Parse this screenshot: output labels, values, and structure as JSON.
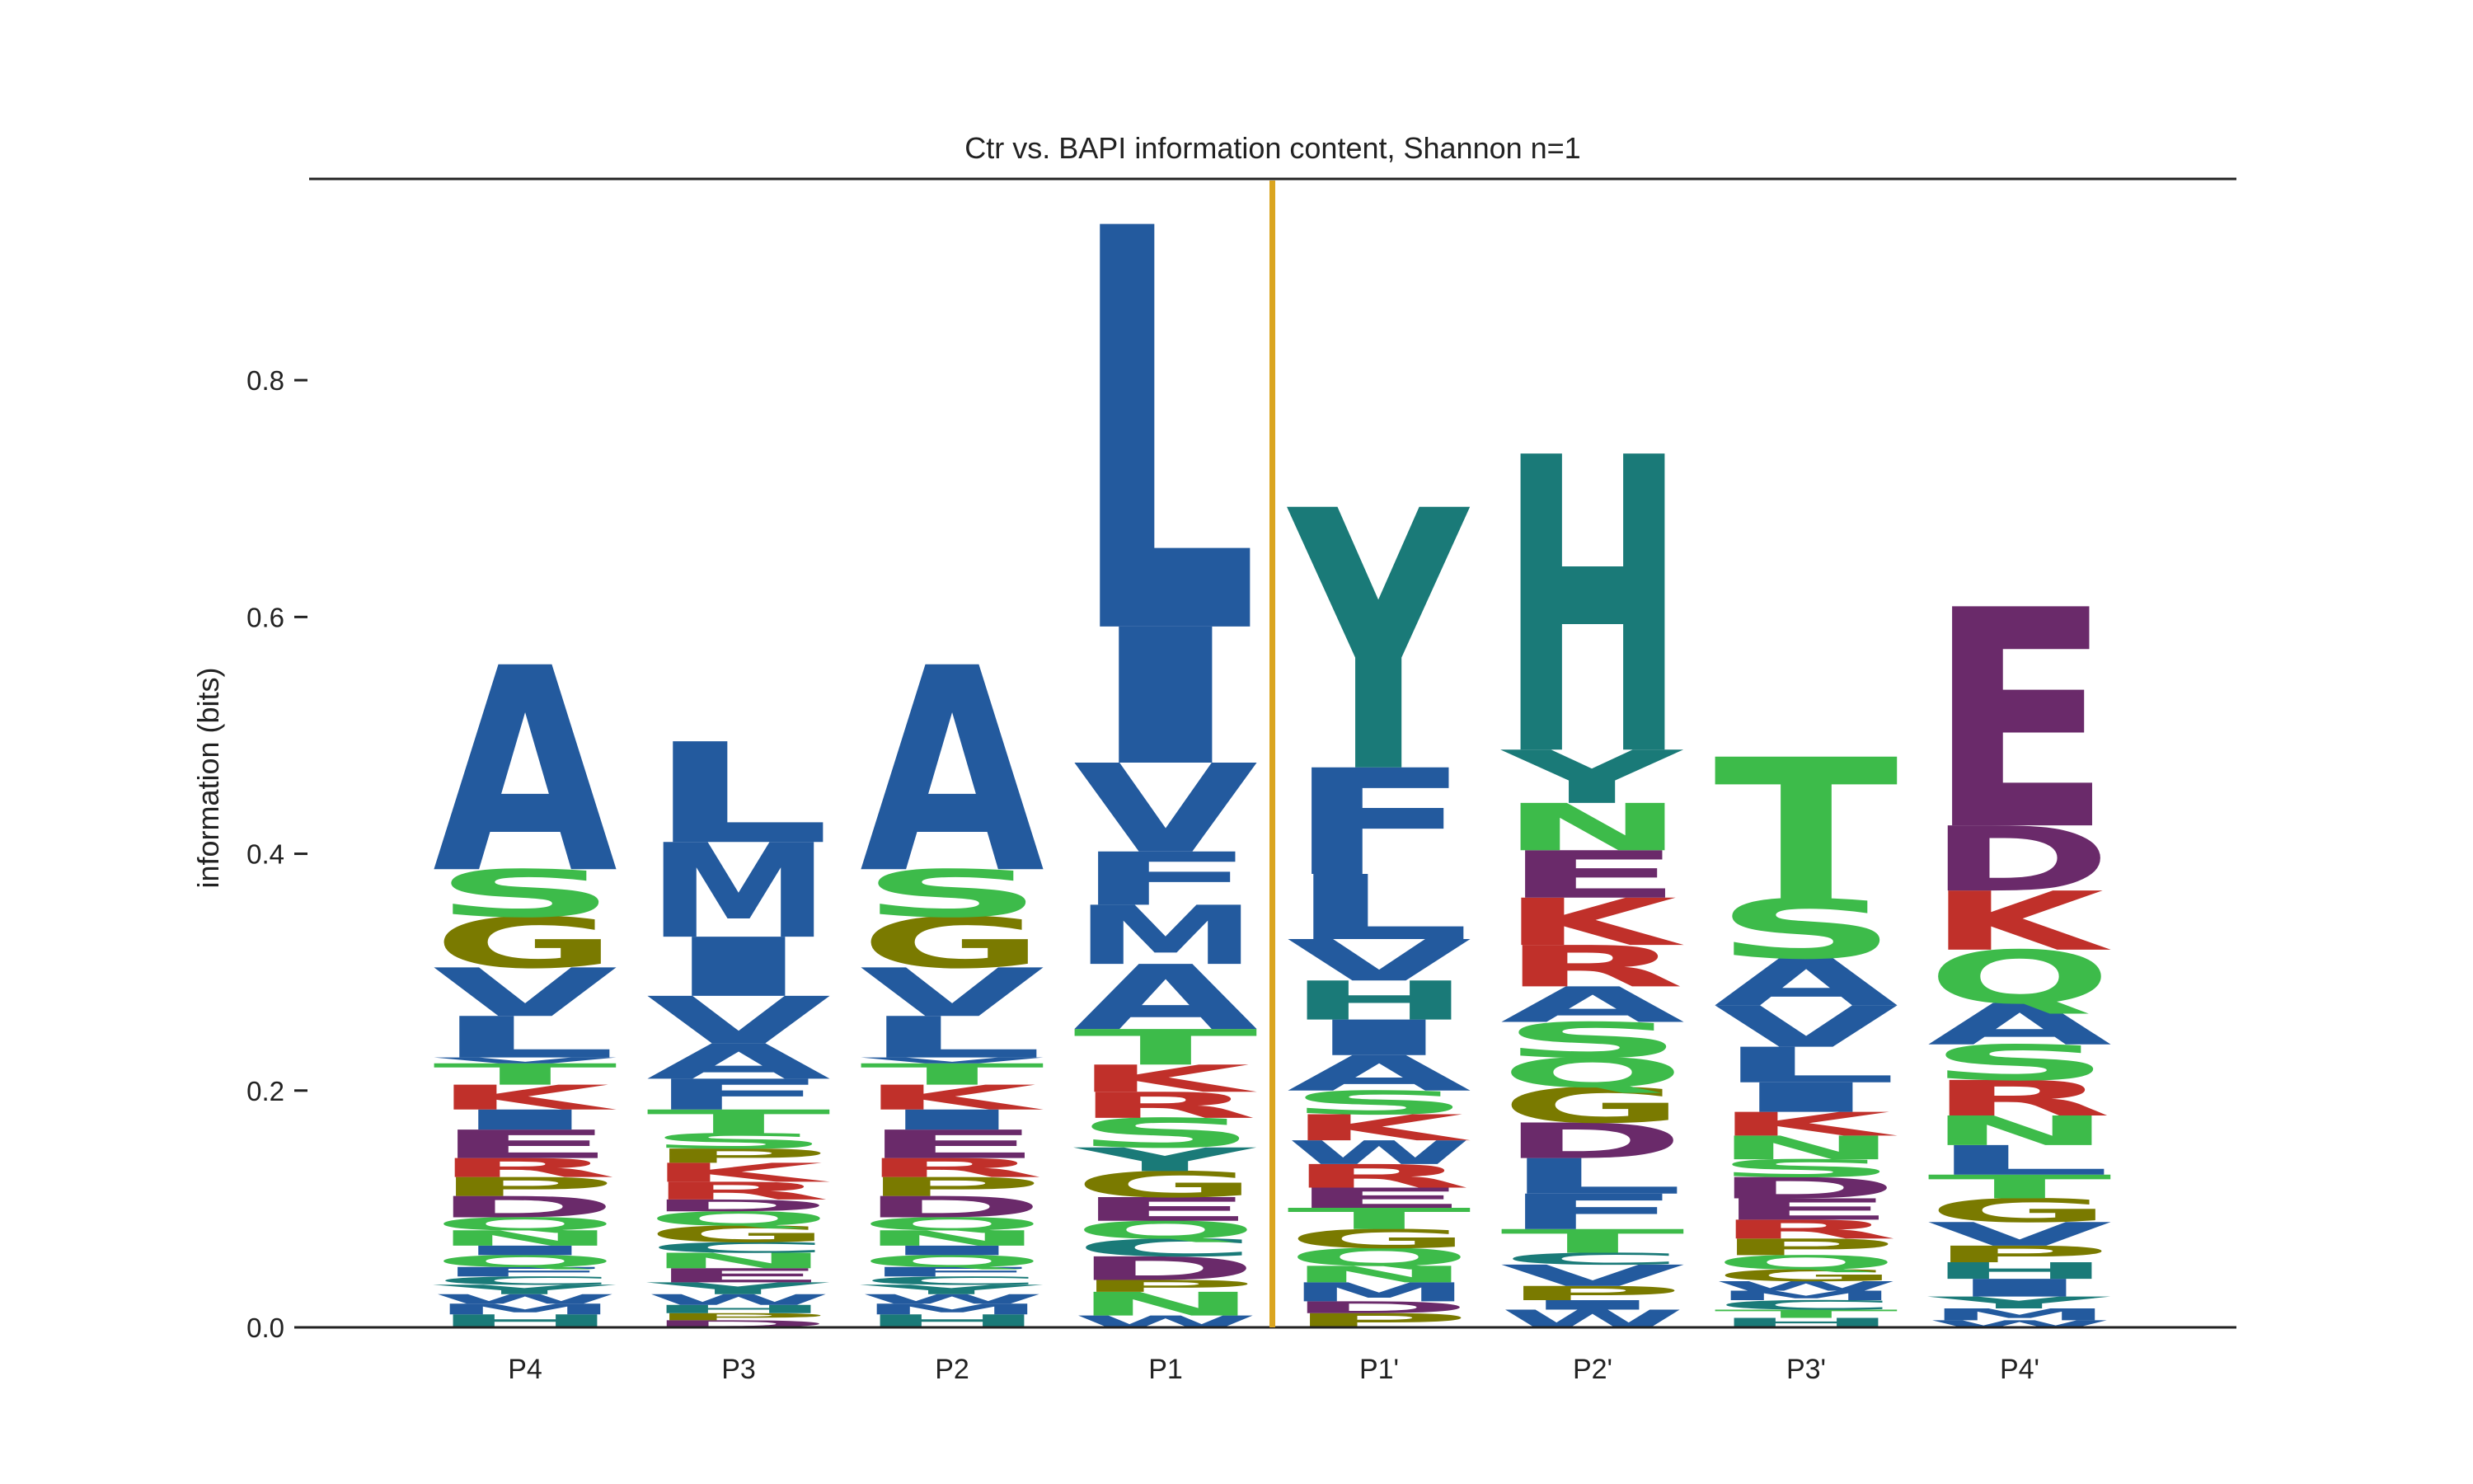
{
  "chart_data": {
    "type": "sequence-logo",
    "title": "Ctr vs. BAPI information content, Shannon n=1",
    "ylabel": "information (bits)",
    "xlabel": "",
    "ylim": [
      0,
      0.97
    ],
    "yticks": [
      {
        "value": 0.0,
        "label": "0.0"
      },
      {
        "value": 0.2,
        "label": "0.2"
      },
      {
        "value": 0.4,
        "label": "0.4"
      },
      {
        "value": 0.6,
        "label": "0.6"
      },
      {
        "value": 0.8,
        "label": "0.8"
      }
    ],
    "cleavage_site_between": [
      "P1",
      "P1'"
    ],
    "colors": {
      "A": "#235a9e",
      "V": "#235a9e",
      "L": "#235a9e",
      "I": "#235a9e",
      "M": "#235a9e",
      "F": "#235a9e",
      "W": "#235a9e",
      "S": "#3dbb4a",
      "T": "#3dbb4a",
      "N": "#3dbb4a",
      "Q": "#3dbb4a",
      "G": "#7a7a00",
      "P": "#7a7a00",
      "K": "#c0302a",
      "R": "#c0302a",
      "D": "#6a2a6a",
      "E": "#6a2a6a",
      "H": "#1a7a78",
      "Y": "#1a7a78",
      "C": "#1a7a78",
      "cleavage_line": "#daa520"
    },
    "positions": [
      {
        "label": "P4",
        "letters": [
          [
            "H",
            0.011
          ],
          [
            "M",
            0.009
          ],
          [
            "W",
            0.008
          ],
          [
            "Y",
            0.008
          ],
          [
            "C",
            0.007
          ],
          [
            "F",
            0.008
          ],
          [
            "Q",
            0.01
          ],
          [
            "I",
            0.008
          ],
          [
            "N",
            0.013
          ],
          [
            "Q",
            0.011
          ],
          [
            "D",
            0.018
          ],
          [
            "P",
            0.016
          ],
          [
            "R",
            0.016
          ],
          [
            "E",
            0.024
          ],
          [
            "I",
            0.017
          ],
          [
            "K",
            0.021
          ],
          [
            "T",
            0.018
          ],
          [
            "V",
            0.005
          ],
          [
            "L",
            0.035
          ],
          [
            "V",
            0.041
          ],
          [
            "G",
            0.043
          ],
          [
            "S",
            0.04
          ],
          [
            "A",
            0.173
          ]
        ]
      },
      {
        "label": "P3",
        "letters": [
          [
            "D",
            0.006
          ],
          [
            "P",
            0.006
          ],
          [
            "H",
            0.007
          ],
          [
            "W",
            0.009
          ],
          [
            "Y",
            0.01
          ],
          [
            "E",
            0.012
          ],
          [
            "N",
            0.013
          ],
          [
            "C",
            0.009
          ],
          [
            "G",
            0.014
          ],
          [
            "Q",
            0.012
          ],
          [
            "D",
            0.01
          ],
          [
            "R",
            0.015
          ],
          [
            "K",
            0.016
          ],
          [
            "P",
            0.012
          ],
          [
            "S",
            0.013
          ],
          [
            "T",
            0.02
          ],
          [
            "F",
            0.026
          ],
          [
            "A",
            0.03
          ],
          [
            "V",
            0.04
          ],
          [
            "I",
            0.05
          ],
          [
            "M",
            0.08
          ],
          [
            "L",
            0.085
          ]
        ]
      },
      {
        "label": "P2",
        "letters": [
          [
            "H",
            0.011
          ],
          [
            "M",
            0.009
          ],
          [
            "W",
            0.008
          ],
          [
            "Y",
            0.008
          ],
          [
            "C",
            0.007
          ],
          [
            "F",
            0.008
          ],
          [
            "Q",
            0.01
          ],
          [
            "I",
            0.008
          ],
          [
            "N",
            0.013
          ],
          [
            "Q",
            0.011
          ],
          [
            "D",
            0.018
          ],
          [
            "P",
            0.016
          ],
          [
            "R",
            0.016
          ],
          [
            "E",
            0.024
          ],
          [
            "I",
            0.017
          ],
          [
            "K",
            0.021
          ],
          [
            "T",
            0.018
          ],
          [
            "V",
            0.005
          ],
          [
            "L",
            0.035
          ],
          [
            "V",
            0.041
          ],
          [
            "G",
            0.043
          ],
          [
            "S",
            0.04
          ],
          [
            "A",
            0.173
          ]
        ]
      },
      {
        "label": "P1",
        "letters": [
          [
            "W",
            0.01
          ],
          [
            "N",
            0.02
          ],
          [
            "P",
            0.01
          ],
          [
            "D",
            0.02
          ],
          [
            "C",
            0.015
          ],
          [
            "Q",
            0.015
          ],
          [
            "E",
            0.02
          ],
          [
            "G",
            0.022
          ],
          [
            "Y",
            0.02
          ],
          [
            "S",
            0.025
          ],
          [
            "R",
            0.022
          ],
          [
            "K",
            0.023
          ],
          [
            "T",
            0.03
          ],
          [
            "A",
            0.055
          ],
          [
            "M",
            0.05
          ],
          [
            "F",
            0.045
          ],
          [
            "V",
            0.075
          ],
          [
            "I",
            0.115
          ],
          [
            "L",
            0.34
          ]
        ]
      },
      {
        "label": "P1'",
        "letters": [
          [
            "P",
            0.012
          ],
          [
            "D",
            0.01
          ],
          [
            "M",
            0.016
          ],
          [
            "N",
            0.014
          ],
          [
            "Q",
            0.015
          ],
          [
            "G",
            0.016
          ],
          [
            "T",
            0.018
          ],
          [
            "E",
            0.017
          ],
          [
            "R",
            0.02
          ],
          [
            "W",
            0.02
          ],
          [
            "K",
            0.022
          ],
          [
            "S",
            0.02
          ],
          [
            "A",
            0.03
          ],
          [
            "I",
            0.03
          ],
          [
            "H",
            0.033
          ],
          [
            "V",
            0.035
          ],
          [
            "L",
            0.055
          ],
          [
            "F",
            0.09
          ],
          [
            "Y",
            0.22
          ]
        ]
      },
      {
        "label": "P2'",
        "letters": [
          [
            "W",
            0.015
          ],
          [
            "I",
            0.008
          ],
          [
            "P",
            0.012
          ],
          [
            "V",
            0.018
          ],
          [
            "C",
            0.01
          ],
          [
            "T",
            0.02
          ],
          [
            "F",
            0.03
          ],
          [
            "L",
            0.03
          ],
          [
            "D",
            0.03
          ],
          [
            "G",
            0.03
          ],
          [
            "Q",
            0.025
          ],
          [
            "S",
            0.03
          ],
          [
            "A",
            0.03
          ],
          [
            "R",
            0.035
          ],
          [
            "K",
            0.04
          ],
          [
            "E",
            0.04
          ],
          [
            "N",
            0.04
          ],
          [
            "Y",
            0.045
          ],
          [
            "H",
            0.25
          ]
        ]
      },
      {
        "label": "P3'",
        "letters": [
          [
            "H",
            0.008
          ],
          [
            "T",
            0.007
          ],
          [
            "C",
            0.008
          ],
          [
            "M",
            0.008
          ],
          [
            "W",
            0.008
          ],
          [
            "G",
            0.01
          ],
          [
            "Q",
            0.012
          ],
          [
            "P",
            0.014
          ],
          [
            "R",
            0.016
          ],
          [
            "E",
            0.018
          ],
          [
            "D",
            0.018
          ],
          [
            "S",
            0.015
          ],
          [
            "N",
            0.02
          ],
          [
            "K",
            0.02
          ],
          [
            "I",
            0.025
          ],
          [
            "L",
            0.03
          ],
          [
            "V",
            0.035
          ],
          [
            "A",
            0.04
          ],
          [
            "S",
            0.05
          ],
          [
            "T",
            0.12
          ]
        ]
      },
      {
        "label": "P4'",
        "letters": [
          [
            "W",
            0.006
          ],
          [
            "M",
            0.01
          ],
          [
            "Y",
            0.01
          ],
          [
            "I",
            0.015
          ],
          [
            "H",
            0.014
          ],
          [
            "P",
            0.014
          ],
          [
            "V",
            0.02
          ],
          [
            "G",
            0.02
          ],
          [
            "T",
            0.02
          ],
          [
            "L",
            0.025
          ],
          [
            "N",
            0.025
          ],
          [
            "R",
            0.03
          ],
          [
            "S",
            0.03
          ],
          [
            "A",
            0.035
          ],
          [
            "Q",
            0.045
          ],
          [
            "K",
            0.05
          ],
          [
            "D",
            0.055
          ],
          [
            "E",
            0.185
          ]
        ]
      }
    ]
  }
}
